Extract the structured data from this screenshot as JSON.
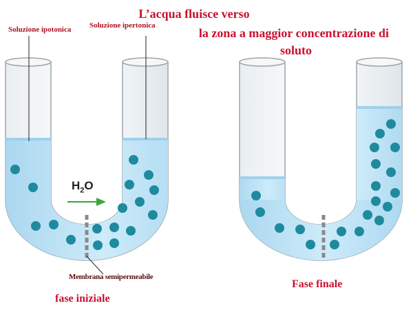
{
  "labels": {
    "hypotonic": "Soluzione ipotonica",
    "hypertonic": "Soluzione ipertonica",
    "membrane": "Membrana semipermeabile",
    "initial_phase": "fase iniziale",
    "final_phase": "Fase finale",
    "molecule_main": "H",
    "molecule_sub": "2",
    "molecule_tail": "O"
  },
  "title": {
    "line1": "L’acqua fluisce verso",
    "line2": "la zona a maggior concentrazione di",
    "line3": "soluto"
  },
  "colors": {
    "solution": "#bfe3f6",
    "solution_dark": "#8fc8e8",
    "particle": "#1f8a9e",
    "tube_outline": "#9aa5ab",
    "title_red": "#c8102e",
    "arrow_green": "#3aa63a",
    "membrane_gray": "#8a8a8a"
  }
}
